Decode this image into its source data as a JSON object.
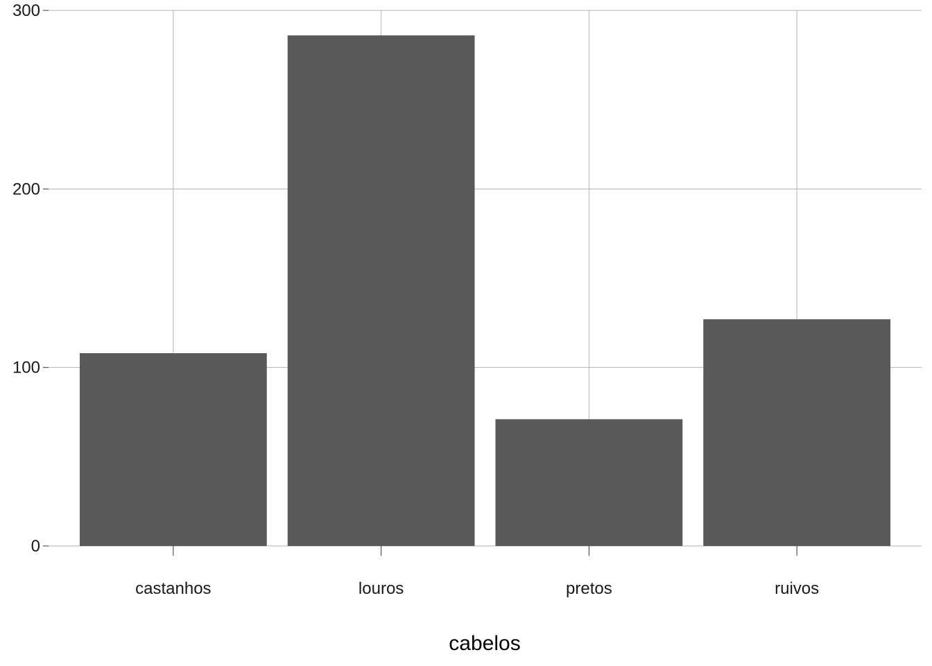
{
  "chart_data": {
    "type": "bar",
    "title": "",
    "xlabel": "cabelos",
    "ylabel": "",
    "categories": [
      "castanhos",
      "louros",
      "pretos",
      "ruivos"
    ],
    "values": [
      108,
      286,
      71,
      127
    ],
    "ylim": [
      0,
      300
    ],
    "yticks": [
      0,
      100,
      200,
      300
    ],
    "ytick_labels": [
      "0",
      "100",
      "200",
      "300"
    ],
    "grid": true,
    "legend": "none",
    "bar_color": "#595959",
    "grid_color": "#b3b3b3"
  }
}
